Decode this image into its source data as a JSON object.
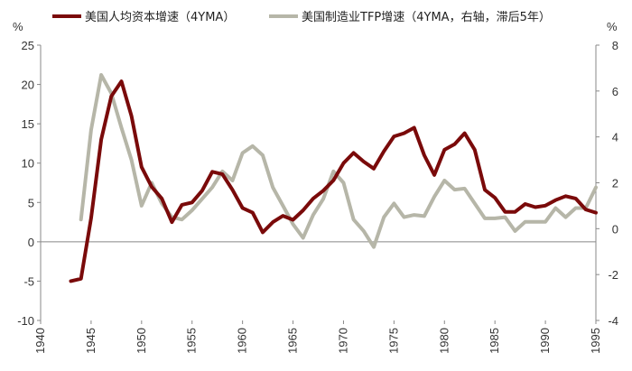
{
  "chart_data": {
    "type": "line",
    "left_unit": "%",
    "right_unit": "%",
    "xlim": [
      1940,
      1995
    ],
    "x_ticks": [
      1940,
      1945,
      1950,
      1955,
      1960,
      1965,
      1970,
      1975,
      1980,
      1985,
      1990,
      1995
    ],
    "left_axis": {
      "ylim": [
        -10,
        25
      ],
      "ticks": [
        -10,
        -5,
        0,
        5,
        10,
        15,
        20,
        25
      ]
    },
    "right_axis": {
      "ylim": [
        -4,
        8
      ],
      "ticks": [
        -4,
        -2,
        0,
        2,
        4,
        6,
        8
      ]
    },
    "grid": false,
    "legend_placement": "top",
    "series": [
      {
        "name": "美国人均资本增速（4YMA）",
        "axis": "left",
        "color": "#7a0a0a",
        "x": [
          1943,
          1944,
          1945,
          1946,
          1947,
          1948,
          1949,
          1950,
          1951,
          1952,
          1953,
          1954,
          1955,
          1956,
          1957,
          1958,
          1959,
          1960,
          1961,
          1962,
          1963,
          1964,
          1965,
          1966,
          1967,
          1968,
          1969,
          1970,
          1971,
          1972,
          1973,
          1974,
          1975,
          1976,
          1977,
          1978,
          1979,
          1980,
          1981,
          1982,
          1983,
          1984,
          1985,
          1986,
          1987,
          1988,
          1989,
          1990,
          1991,
          1992,
          1993,
          1994,
          1995
        ],
        "values": [
          -5,
          -4.7,
          3,
          13,
          18.5,
          20.4,
          16,
          9.5,
          7,
          5.5,
          2.5,
          4.7,
          5,
          6.5,
          8.9,
          8.6,
          6.6,
          4.3,
          3.7,
          1.2,
          2.5,
          3.3,
          2.8,
          4,
          5.5,
          6.5,
          7.8,
          10,
          11.3,
          10.2,
          9.3,
          11.5,
          13.4,
          13.8,
          14.5,
          11,
          8.5,
          11.7,
          12.4,
          13.8,
          11.7,
          6.6,
          5.6,
          3.8,
          3.8,
          4.8,
          4.4,
          4.6,
          5.3,
          5.8,
          5.5,
          4.1,
          3.7
        ]
      },
      {
        "name": "美国制造业TFP增速（4YMA，右轴，滞后5年）",
        "axis": "right",
        "color": "#b6b6a8",
        "x": [
          1944,
          1945,
          1946,
          1947,
          1948,
          1949,
          1950,
          1951,
          1952,
          1953,
          1954,
          1955,
          1956,
          1957,
          1958,
          1959,
          1960,
          1961,
          1962,
          1963,
          1964,
          1965,
          1966,
          1967,
          1968,
          1969,
          1970,
          1971,
          1972,
          1973,
          1974,
          1975,
          1976,
          1977,
          1978,
          1979,
          1980,
          1981,
          1982,
          1983,
          1984,
          1985,
          1986,
          1987,
          1988,
          1989,
          1990,
          1991,
          1992,
          1993,
          1994,
          1995
        ],
        "values": [
          0.4,
          4.3,
          6.7,
          5.9,
          4.4,
          3,
          1,
          2,
          1.1,
          0.5,
          0.4,
          0.8,
          1.3,
          1.8,
          2.5,
          2.1,
          3.3,
          3.6,
          3.2,
          1.8,
          1,
          0.2,
          -0.4,
          0.6,
          1.3,
          2.5,
          2,
          0.4,
          -0.1,
          -0.8,
          0.5,
          1.1,
          0.5,
          0.6,
          0.55,
          1.4,
          2.1,
          1.7,
          1.75,
          1.1,
          0.45,
          0.45,
          0.5,
          -0.1,
          0.3,
          0.3,
          0.3,
          0.9,
          0.5,
          0.9,
          0.9,
          1.8
        ]
      }
    ]
  }
}
